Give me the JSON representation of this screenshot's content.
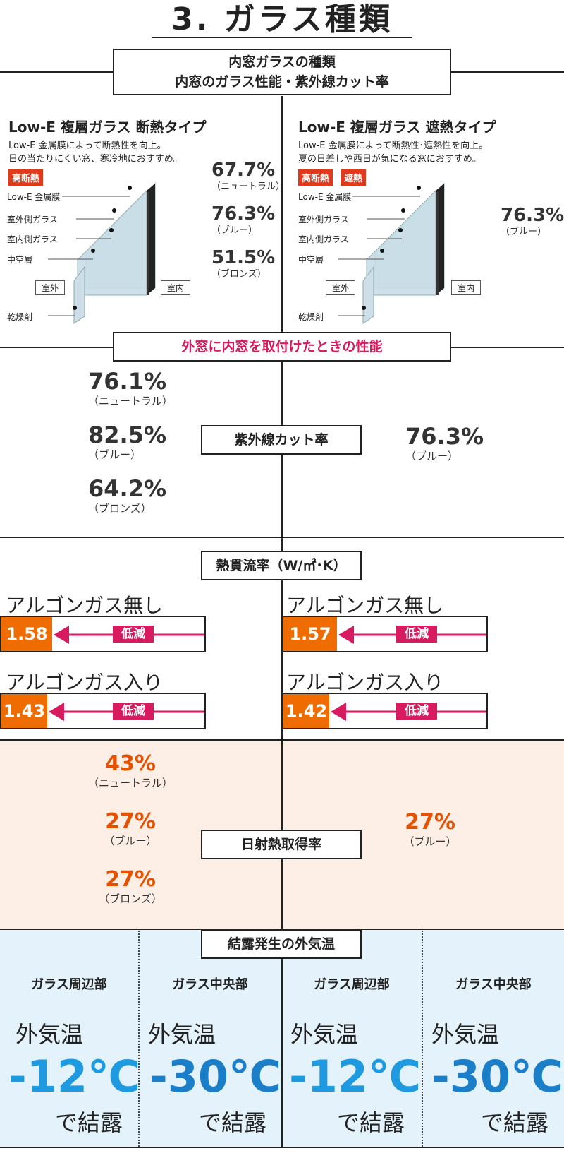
{
  "page_title": "3. ガラス種類",
  "header_box": {
    "line1": "内窓ガラスの種類",
    "line2": "内窓のガラス性能・紫外線カット率"
  },
  "left_panel": {
    "title": "Low-E 複層ガラス 断熱タイプ",
    "desc1": "Low-E 金属膜によって断熱性を向上。",
    "desc2": "日の当たりにくい窓、寒冷地におすすめ。",
    "tags": [
      "高断熱"
    ],
    "diagram": {
      "lowe": "Low-E 金属膜",
      "outer_glass": "室外側ガラス",
      "inner_glass": "室内側ガラス",
      "air_layer": "中空層",
      "desiccant": "乾燥剤",
      "outside": "室外",
      "inside": "室内"
    },
    "uv_values": [
      {
        "value": "67.7%",
        "label": "（ニュートラル）"
      },
      {
        "value": "76.3%",
        "label": "（ブルー）"
      },
      {
        "value": "51.5%",
        "label": "（ブロンズ）"
      }
    ]
  },
  "right_panel": {
    "title": "Low-E 複層ガラス 遮熱タイプ",
    "desc1": "Low-E 金属膜によって断熱性･遮熱性を向上。",
    "desc2": "夏の日差しや西日が気になる窓におすすめ。",
    "tags": [
      "高断熱",
      "遮熱"
    ],
    "diagram": {
      "lowe": "Low-E 金属膜",
      "outer_glass": "室外側ガラス",
      "inner_glass": "室内側ガラス",
      "air_layer": "中空層",
      "desiccant": "乾燥剤",
      "outside": "室外",
      "inside": "室内"
    },
    "uv_values": [
      {
        "value": "76.3%",
        "label": "（ブルー）"
      }
    ]
  },
  "combined_box": "外窓に内窓を取付けたときの性能",
  "uv_section": {
    "label": "紫外線カット率",
    "left": [
      {
        "value": "76.1%",
        "label": "（ニュートラル）"
      },
      {
        "value": "82.5%",
        "label": "（ブルー）"
      },
      {
        "value": "64.2%",
        "label": "（ブロンズ）"
      }
    ],
    "right": [
      {
        "value": "76.3%",
        "label": "（ブルー）"
      }
    ]
  },
  "uvalue_section": {
    "label": "熱貫流率（W/㎡･K）",
    "reduce_label": "低減",
    "left": [
      {
        "label": "アルゴンガス無し",
        "value": "1.58"
      },
      {
        "label": "アルゴンガス入り",
        "value": "1.43"
      }
    ],
    "right": [
      {
        "label": "アルゴンガス無し",
        "value": "1.57"
      },
      {
        "label": "アルゴンガス入り",
        "value": "1.42"
      }
    ]
  },
  "shgc_section": {
    "label": "日射熱取得率",
    "left": [
      {
        "value": "43%",
        "label": "（ニュートラル）"
      },
      {
        "value": "27%",
        "label": "（ブルー）"
      },
      {
        "value": "27%",
        "label": "（ブロンズ）"
      }
    ],
    "right": [
      {
        "value": "27%",
        "label": "（ブルー）"
      }
    ]
  },
  "condensation_section": {
    "label": "結露発生の外気温",
    "columns": [
      {
        "head": "ガラス周辺部",
        "air": "外気温",
        "temp": "-12℃",
        "tail": "で結露",
        "color": "#1e9be0"
      },
      {
        "head": "ガラス中央部",
        "air": "外気温",
        "temp": "-30℃",
        "tail": "で結露",
        "color": "#1a7ec8"
      },
      {
        "head": "ガラス周辺部",
        "air": "外気温",
        "temp": "-12℃",
        "tail": "で結露",
        "color": "#1e9be0"
      },
      {
        "head": "ガラス中央部",
        "air": "外気温",
        "temp": "-30℃",
        "tail": "で結露",
        "color": "#1a7ec8"
      }
    ]
  },
  "colors": {
    "accent_pink": "#d81b60",
    "tag_red": "#e0391b",
    "uvalue_orange": "#ef6c00",
    "shgc_orange": "#e65100",
    "shgc_bg": "#fdeee6",
    "cond_bg": "#e4f2fb"
  }
}
